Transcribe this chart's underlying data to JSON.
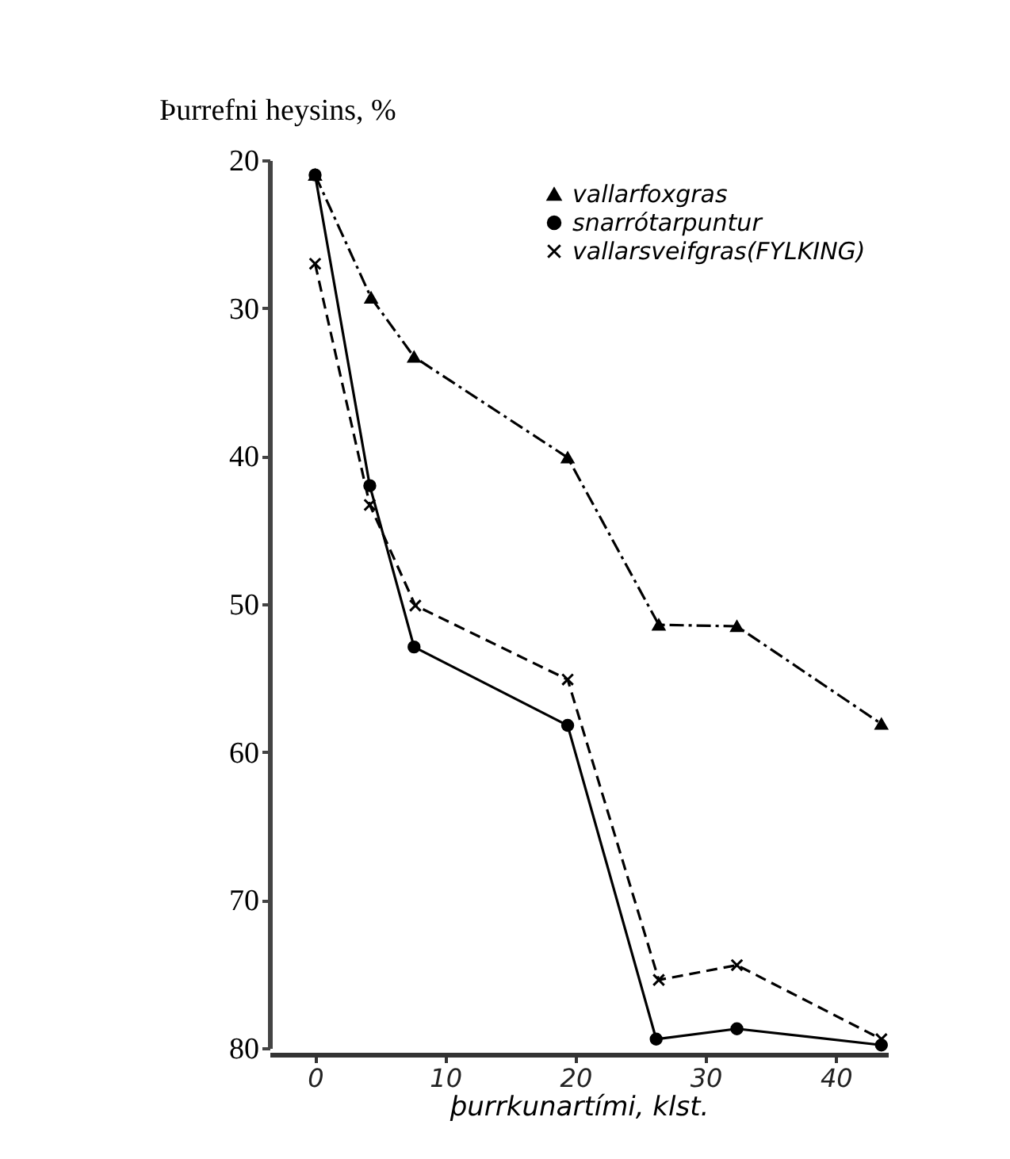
{
  "chart_data": {
    "type": "line",
    "xlabel": "þurrkunartími, klst.",
    "ylabel": "Þurrefni heysins, %",
    "xlim": [
      -3.5,
      44
    ],
    "xticks": [
      0,
      10,
      20,
      30,
      40
    ],
    "ylim": [
      80,
      20
    ],
    "yticks": [
      20,
      30,
      40,
      50,
      60,
      70,
      80
    ],
    "grid": false,
    "legend": "top right",
    "series": [
      {
        "name": "vallarfoxgras",
        "color": "#000000",
        "marker": "triangle",
        "line_style": "dashdot",
        "x": [
          0,
          4.3,
          7.6,
          19.4,
          26.4,
          32.4,
          43.5
        ],
        "values": [
          21,
          29.3,
          33.3,
          40.1,
          51.4,
          51.5,
          58.1
        ]
      },
      {
        "name": "snarrótarpuntur",
        "color": "#000000",
        "marker": "circle",
        "line_style": "solid",
        "x": [
          0,
          4.2,
          7.6,
          19.4,
          26.2,
          32.4,
          43.5
        ],
        "values": [
          21,
          42,
          52.9,
          58.2,
          79.4,
          78.7,
          79.8
        ]
      },
      {
        "name": "vallarsveifgras(FYLKING)",
        "color": "#000000",
        "marker": "cross",
        "line_style": "dashed",
        "x": [
          0,
          4.2,
          7.7,
          19.4,
          26.4,
          32.4,
          43.5
        ],
        "values": [
          27,
          43.3,
          50.1,
          55.1,
          75.4,
          74.4,
          79.4
        ]
      }
    ]
  }
}
